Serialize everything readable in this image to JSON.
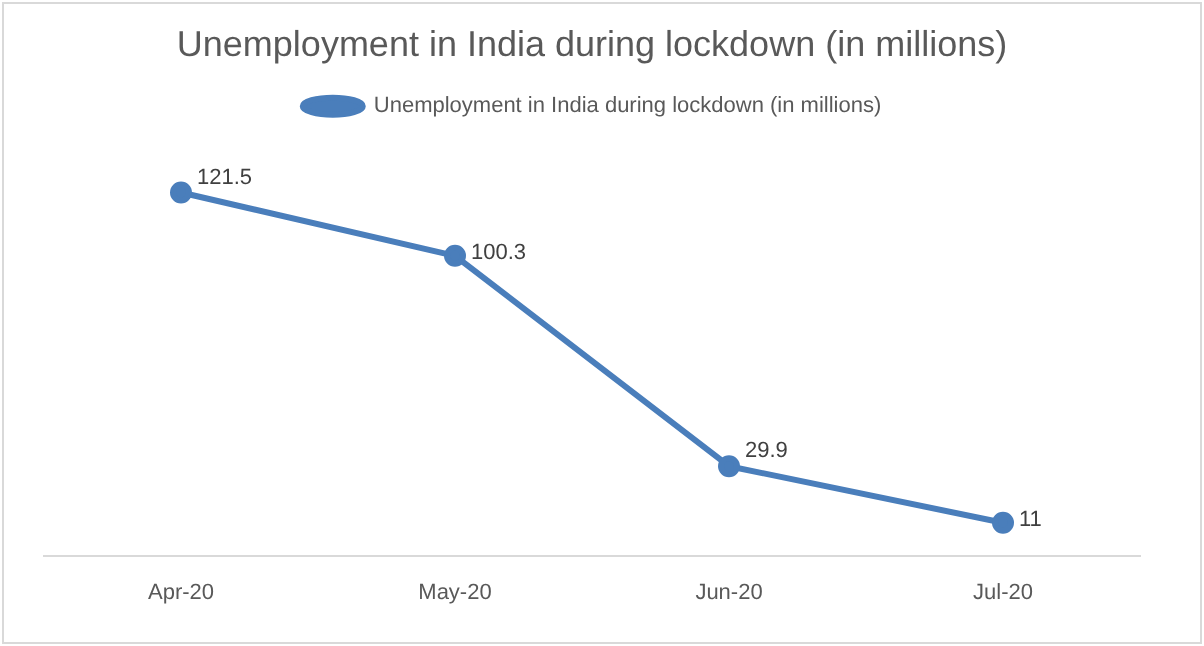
{
  "chart_data": {
    "type": "line",
    "title": "Unemployment in India during lockdown (in millions)",
    "categories": [
      "Apr-20",
      "May-20",
      "Jun-20",
      "Jul-20"
    ],
    "series": [
      {
        "name": "Unemployment in India during lockdown (in millions)",
        "color": "#4a7ebb",
        "values": [
          121.5,
          100.3,
          29.9,
          11
        ]
      }
    ],
    "data_labels": true,
    "legend": "top",
    "marker": "circle",
    "line_style": "solid",
    "grid": false
  }
}
